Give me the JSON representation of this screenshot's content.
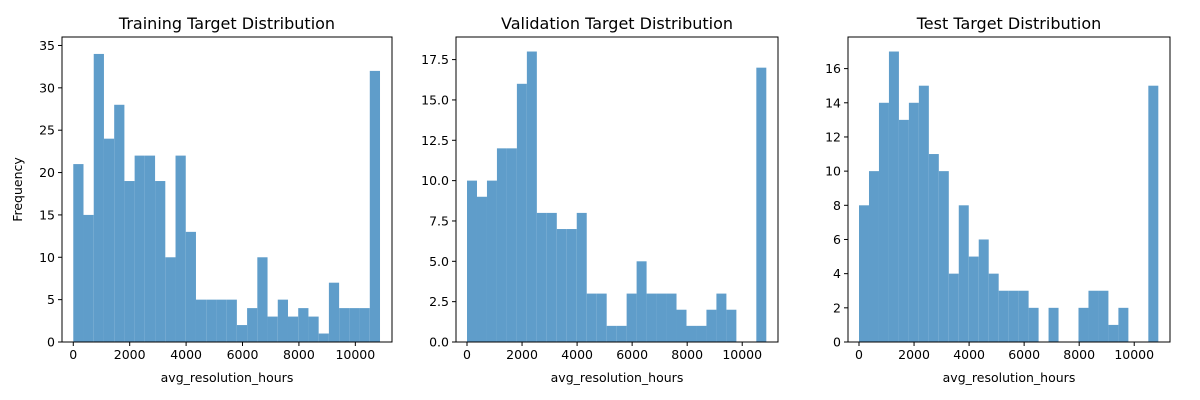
{
  "chart_data": [
    {
      "type": "histogram",
      "title": "Training Target Distribution",
      "xlabel": "avg_resolution_hours",
      "ylabel": "Frequency",
      "xlim": [
        -400,
        11300
      ],
      "ylim": [
        0,
        36
      ],
      "xticks": [
        0,
        2000,
        4000,
        6000,
        8000,
        10000
      ],
      "yticks": [
        0,
        5,
        10,
        15,
        20,
        25,
        30,
        35
      ],
      "ytick_labels": [
        "0",
        "5",
        "10",
        "15",
        "20",
        "25",
        "30",
        "35"
      ],
      "bin_start": 0,
      "bin_width": 362.5,
      "counts": [
        21,
        15,
        34,
        24,
        28,
        19,
        22,
        22,
        19,
        10,
        22,
        13,
        5,
        5,
        5,
        5,
        2,
        4,
        10,
        3,
        5,
        3,
        4,
        3,
        1,
        7,
        4,
        4,
        4,
        32
      ]
    },
    {
      "type": "histogram",
      "title": "Validation Target Distribution",
      "xlabel": "avg_resolution_hours",
      "ylabel": "",
      "xlim": [
        -400,
        11300
      ],
      "ylim": [
        0,
        18.9
      ],
      "xticks": [
        0,
        2000,
        4000,
        6000,
        8000,
        10000
      ],
      "yticks": [
        0,
        2.5,
        5,
        7.5,
        10,
        12.5,
        15,
        17.5
      ],
      "ytick_labels": [
        "0.0",
        "2.5",
        "5.0",
        "7.5",
        "10.0",
        "12.5",
        "15.0",
        "17.5"
      ],
      "bin_start": 0,
      "bin_width": 362.5,
      "counts": [
        10,
        9,
        10,
        12,
        12,
        16,
        18,
        8,
        8,
        7,
        7,
        8,
        3,
        3,
        1,
        1,
        3,
        5,
        3,
        3,
        3,
        2,
        1,
        1,
        2,
        3,
        2,
        0,
        0,
        17
      ]
    },
    {
      "type": "histogram",
      "title": "Test Target Distribution",
      "xlabel": "avg_resolution_hours",
      "ylabel": "",
      "xlim": [
        -400,
        11300
      ],
      "ylim": [
        0,
        17.85
      ],
      "xticks": [
        0,
        2000,
        4000,
        6000,
        8000,
        10000
      ],
      "yticks": [
        0,
        2,
        4,
        6,
        8,
        10,
        12,
        14,
        16
      ],
      "ytick_labels": [
        "0",
        "2",
        "4",
        "6",
        "8",
        "10",
        "12",
        "14",
        "16"
      ],
      "bin_start": 0,
      "bin_width": 362.5,
      "counts": [
        8,
        10,
        14,
        17,
        13,
        14,
        15,
        11,
        10,
        4,
        8,
        5,
        6,
        4,
        3,
        3,
        3,
        2,
        0,
        2,
        0,
        0,
        2,
        3,
        3,
        1,
        2,
        0,
        0,
        15
      ]
    }
  ]
}
